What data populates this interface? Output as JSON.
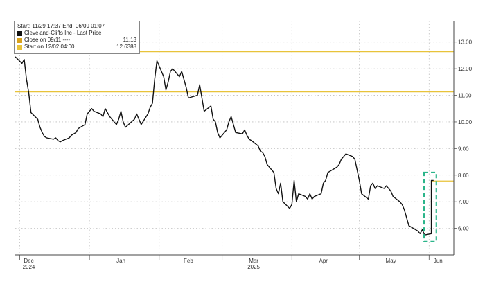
{
  "legend": {
    "header": "Start: 11/29 17:37  End: 06/09 01:07",
    "items": [
      {
        "label": "Cleveland-Cliffs Inc - Last Price",
        "value": "",
        "color": "#111111"
      },
      {
        "label": "Close on 09/11 ----",
        "value": "11.13",
        "color": "#d9a21b"
      },
      {
        "label": "Start on 12/02 04:00",
        "value": "12.6388",
        "color": "#e8c33a"
      }
    ]
  },
  "chart_data": {
    "type": "line",
    "title": "",
    "xlabel": "",
    "ylabel": "",
    "ylim": [
      5.0,
      13.8
    ],
    "xlim": [
      "2024-11-29",
      "2025-06-12"
    ],
    "y_ticks": [
      "6.00",
      "7.00",
      "8.00",
      "9.00",
      "10.00",
      "11.00",
      "12.00",
      "13.00"
    ],
    "x_tick_labels": [
      {
        "label": "Dec",
        "sub": "2024",
        "date": "2024-12-05"
      },
      {
        "label": "Jan",
        "sub": "",
        "date": "2025-01-15"
      },
      {
        "label": "Feb",
        "sub": "",
        "date": "2025-02-14"
      },
      {
        "label": "Mar",
        "sub": "2025",
        "date": "2025-03-15"
      },
      {
        "label": "Apr",
        "sub": "",
        "date": "2025-04-15"
      },
      {
        "label": "May",
        "sub": "",
        "date": "2025-05-15"
      },
      {
        "label": "Jun",
        "sub": "",
        "date": "2025-06-05"
      }
    ],
    "x_tick_marks": [
      "2024-12-01",
      "2025-01-01",
      "2025-02-01",
      "2025-03-01",
      "2025-04-01",
      "2025-05-01",
      "2025-06-01"
    ],
    "grid": true,
    "legend_position": "top-left",
    "reference_lines": [
      {
        "name": "Close on 09/11",
        "value": 11.13,
        "color": "#e8c33a"
      },
      {
        "name": "Start on 12/02 04:00",
        "value": 12.6388,
        "color": "#e8c33a"
      },
      {
        "name": "",
        "value": 7.78,
        "color": "#e8c33a",
        "from": "2025-06-02"
      }
    ],
    "highlight_box": {
      "x": [
        "2025-05-31",
        "2025-06-03"
      ],
      "y": [
        5.5,
        8.1
      ],
      "color": "#2bb58a"
    },
    "series": [
      {
        "name": "Cleveland-Cliffs Inc - Last Price",
        "color": "#111111",
        "x": [
          "2024-11-29",
          "2024-12-02",
          "2024-12-03",
          "2024-12-04",
          "2024-12-05",
          "2024-12-06",
          "2024-12-09",
          "2024-12-10",
          "2024-12-11",
          "2024-12-12",
          "2024-12-13",
          "2024-12-16",
          "2024-12-17",
          "2024-12-18",
          "2024-12-19",
          "2024-12-20",
          "2024-12-23",
          "2024-12-24",
          "2024-12-26",
          "2024-12-27",
          "2024-12-30",
          "2024-12-31",
          "2025-01-02",
          "2025-01-03",
          "2025-01-06",
          "2025-01-07",
          "2025-01-08",
          "2025-01-10",
          "2025-01-13",
          "2025-01-14",
          "2025-01-15",
          "2025-01-16",
          "2025-01-17",
          "2025-01-21",
          "2025-01-22",
          "2025-01-23",
          "2025-01-24",
          "2025-01-27",
          "2025-01-28",
          "2025-01-29",
          "2025-01-30",
          "2025-01-31",
          "2025-02-03",
          "2025-02-04",
          "2025-02-05",
          "2025-02-06",
          "2025-02-07",
          "2025-02-10",
          "2025-02-11",
          "2025-02-12",
          "2025-02-13",
          "2025-02-14",
          "2025-02-18",
          "2025-02-19",
          "2025-02-20",
          "2025-02-21",
          "2025-02-24",
          "2025-02-25",
          "2025-02-26",
          "2025-02-27",
          "2025-02-28",
          "2025-03-03",
          "2025-03-04",
          "2025-03-05",
          "2025-03-06",
          "2025-03-07",
          "2025-03-10",
          "2025-03-11",
          "2025-03-12",
          "2025-03-13",
          "2025-03-14",
          "2025-03-17",
          "2025-03-18",
          "2025-03-19",
          "2025-03-20",
          "2025-03-21",
          "2025-03-24",
          "2025-03-25",
          "2025-03-26",
          "2025-03-27",
          "2025-03-28",
          "2025-03-31",
          "2025-04-01",
          "2025-04-02",
          "2025-04-03",
          "2025-04-04",
          "2025-04-07",
          "2025-04-08",
          "2025-04-09",
          "2025-04-10",
          "2025-04-11",
          "2025-04-14",
          "2025-04-15",
          "2025-04-16",
          "2025-04-17",
          "2025-04-21",
          "2025-04-22",
          "2025-04-23",
          "2025-04-24",
          "2025-04-25",
          "2025-04-28",
          "2025-04-29",
          "2025-04-30",
          "2025-05-01",
          "2025-05-02",
          "2025-05-05",
          "2025-05-06",
          "2025-05-07",
          "2025-05-08",
          "2025-05-09",
          "2025-05-12",
          "2025-05-13",
          "2025-05-14",
          "2025-05-15",
          "2025-05-16",
          "2025-05-19",
          "2025-05-20",
          "2025-05-21",
          "2025-05-22",
          "2025-05-23",
          "2025-05-27",
          "2025-05-28",
          "2025-05-29",
          "2025-05-30",
          "2025-06-02",
          "2025-06-02",
          "2025-06-03"
        ],
        "values": [
          12.45,
          12.2,
          12.35,
          11.6,
          11.1,
          10.35,
          10.1,
          9.8,
          9.6,
          9.45,
          9.4,
          9.35,
          9.4,
          9.3,
          9.25,
          9.3,
          9.4,
          9.5,
          9.6,
          9.75,
          9.9,
          10.3,
          10.5,
          10.4,
          10.3,
          10.2,
          10.5,
          10.2,
          9.9,
          10.1,
          10.4,
          10.0,
          9.8,
          10.1,
          10.3,
          10.1,
          9.9,
          10.3,
          10.55,
          10.7,
          11.6,
          12.3,
          11.7,
          11.2,
          11.5,
          11.9,
          12.0,
          11.7,
          11.9,
          11.6,
          11.3,
          10.9,
          11.0,
          11.4,
          10.9,
          10.4,
          10.6,
          10.1,
          10.0,
          9.6,
          9.4,
          9.7,
          10.0,
          10.2,
          9.9,
          9.6,
          9.55,
          9.7,
          9.5,
          9.35,
          9.3,
          9.1,
          8.9,
          8.85,
          8.7,
          8.4,
          8.1,
          7.5,
          7.3,
          7.7,
          7.0,
          6.75,
          6.9,
          7.8,
          7.0,
          7.3,
          7.2,
          7.1,
          7.3,
          7.1,
          7.2,
          7.3,
          7.7,
          7.8,
          8.1,
          8.3,
          8.4,
          8.6,
          8.7,
          8.8,
          8.7,
          8.6,
          8.2,
          7.8,
          7.3,
          7.1,
          7.6,
          7.7,
          7.5,
          7.6,
          7.5,
          7.6,
          7.5,
          7.4,
          7.2,
          7.0,
          6.9,
          6.7,
          6.4,
          6.1,
          5.9,
          5.8,
          5.95,
          5.75,
          5.8,
          7.8,
          7.8
        ]
      }
    ]
  }
}
